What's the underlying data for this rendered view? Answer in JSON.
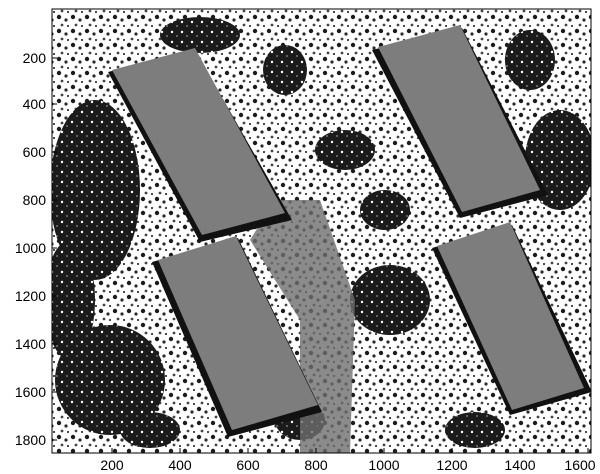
{
  "figure": {
    "kind": "segmented aerial image with axes",
    "colors": {
      "background": "#ffffff",
      "roof": "#7d7d7d",
      "shadow": "#111111",
      "vegetation_dark": "#1b1b1b",
      "vegetation_mid": "#3a3a3a",
      "ground": "#ffffff",
      "road": "#6e6e6e",
      "axes": "#000000"
    },
    "x_axis": {
      "tick_labels": [
        "200",
        "400",
        "600",
        "800",
        "1000",
        "1200",
        "1400",
        "1600"
      ]
    },
    "y_axis": {
      "tick_labels": [
        "200",
        "400",
        "600",
        "800",
        "1000",
        "1200",
        "1400",
        "1600",
        "1800"
      ]
    },
    "image": {
      "content": "four rectangular building roofs in gray, surrounded by dark tree canopy and white open ground, with a diagonal road between buildings"
    }
  }
}
